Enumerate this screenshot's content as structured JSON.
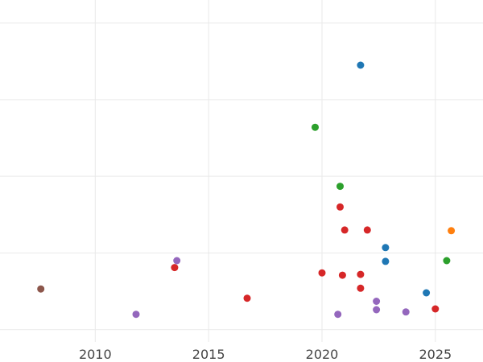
{
  "chart_data": {
    "type": "scatter",
    "title": "",
    "xlabel": "",
    "ylabel": "",
    "xlim": [
      2005.8,
      2027.1
    ],
    "ylim": [
      -0.16,
      4.3
    ],
    "x_ticks": [
      2010,
      2015,
      2020,
      2025
    ],
    "y_gridlines": [
      0,
      1,
      2,
      3,
      4
    ],
    "grid": true,
    "colors": {
      "blue": "#1f77b4",
      "green": "#2ca02c",
      "red": "#d62728",
      "purple": "#9467bd",
      "orange": "#ff7f0e",
      "brown": "#8c564b"
    },
    "points": [
      {
        "x": 2007.6,
        "y": 0.53,
        "color": "brown"
      },
      {
        "x": 2011.8,
        "y": 0.2,
        "color": "purple"
      },
      {
        "x": 2013.5,
        "y": 0.81,
        "color": "red"
      },
      {
        "x": 2013.6,
        "y": 0.9,
        "color": "purple"
      },
      {
        "x": 2016.7,
        "y": 0.41,
        "color": "red"
      },
      {
        "x": 2019.7,
        "y": 2.64,
        "color": "green"
      },
      {
        "x": 2020.0,
        "y": 0.74,
        "color": "red"
      },
      {
        "x": 2020.7,
        "y": 0.2,
        "color": "purple"
      },
      {
        "x": 2020.8,
        "y": 1.87,
        "color": "green"
      },
      {
        "x": 2020.8,
        "y": 1.6,
        "color": "red"
      },
      {
        "x": 2020.9,
        "y": 0.71,
        "color": "red"
      },
      {
        "x": 2021.0,
        "y": 1.3,
        "color": "red"
      },
      {
        "x": 2021.7,
        "y": 0.72,
        "color": "red"
      },
      {
        "x": 2021.7,
        "y": 0.54,
        "color": "red"
      },
      {
        "x": 2021.7,
        "y": 3.45,
        "color": "blue"
      },
      {
        "x": 2022.0,
        "y": 1.3,
        "color": "red"
      },
      {
        "x": 2022.4,
        "y": 0.37,
        "color": "purple"
      },
      {
        "x": 2022.4,
        "y": 0.26,
        "color": "purple"
      },
      {
        "x": 2022.8,
        "y": 1.07,
        "color": "blue"
      },
      {
        "x": 2022.8,
        "y": 0.89,
        "color": "blue"
      },
      {
        "x": 2023.7,
        "y": 0.23,
        "color": "purple"
      },
      {
        "x": 2024.6,
        "y": 0.48,
        "color": "blue"
      },
      {
        "x": 2025.0,
        "y": 0.27,
        "color": "red"
      },
      {
        "x": 2025.5,
        "y": 0.9,
        "color": "green"
      },
      {
        "x": 2025.7,
        "y": 1.29,
        "color": "orange"
      }
    ]
  }
}
